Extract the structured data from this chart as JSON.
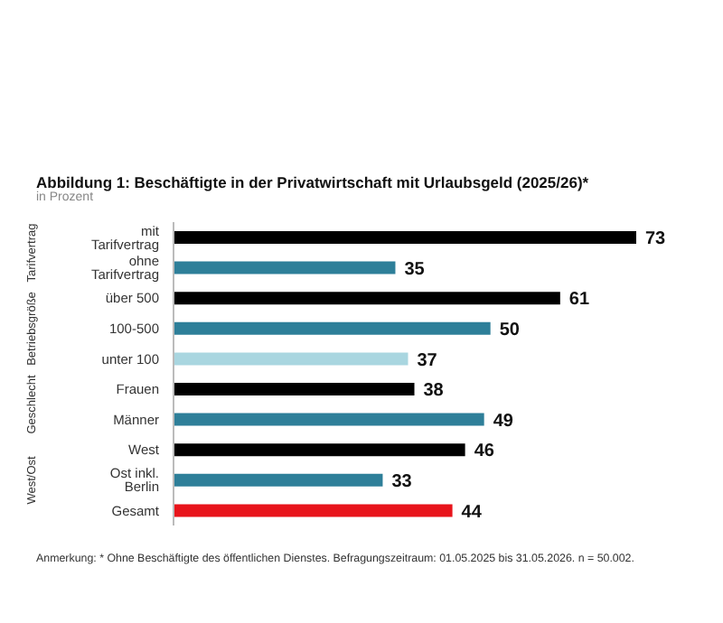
{
  "chart_data": {
    "type": "bar",
    "orientation": "horizontal",
    "title": "Abbildung 1: Beschäftigte in der Privatwirtschaft mit Urlaubsgeld (2025/26)*",
    "subtitle": "in Prozent",
    "categories": [
      "mit Tarifvertrag",
      "ohne Tarifvertrag",
      "über 500",
      "100-500",
      "unter 100",
      "Frauen",
      "Männer",
      "West",
      "Ost inkl. Berlin",
      "Gesamt"
    ],
    "values": [
      73,
      35,
      61,
      50,
      37,
      38,
      49,
      46,
      33,
      44
    ],
    "colors": [
      "#000000",
      "#2e7f99",
      "#000000",
      "#2e7f99",
      "#a9d6e0",
      "#000000",
      "#2e7f99",
      "#000000",
      "#2e7f99",
      "#e8141b"
    ],
    "data_labels": true,
    "grid": false,
    "legend": false,
    "annotations": [
      "Tarifvertrag",
      "Betriebsgröße",
      "Geschlecht",
      "West/Ost",
      "Anmerkung: * Ohne Beschäftigte des öffentlichen Dienstes. Befragungszeitraum: 01.05.2025 bis 31.05.2026. n = 50.002."
    ]
  }
}
